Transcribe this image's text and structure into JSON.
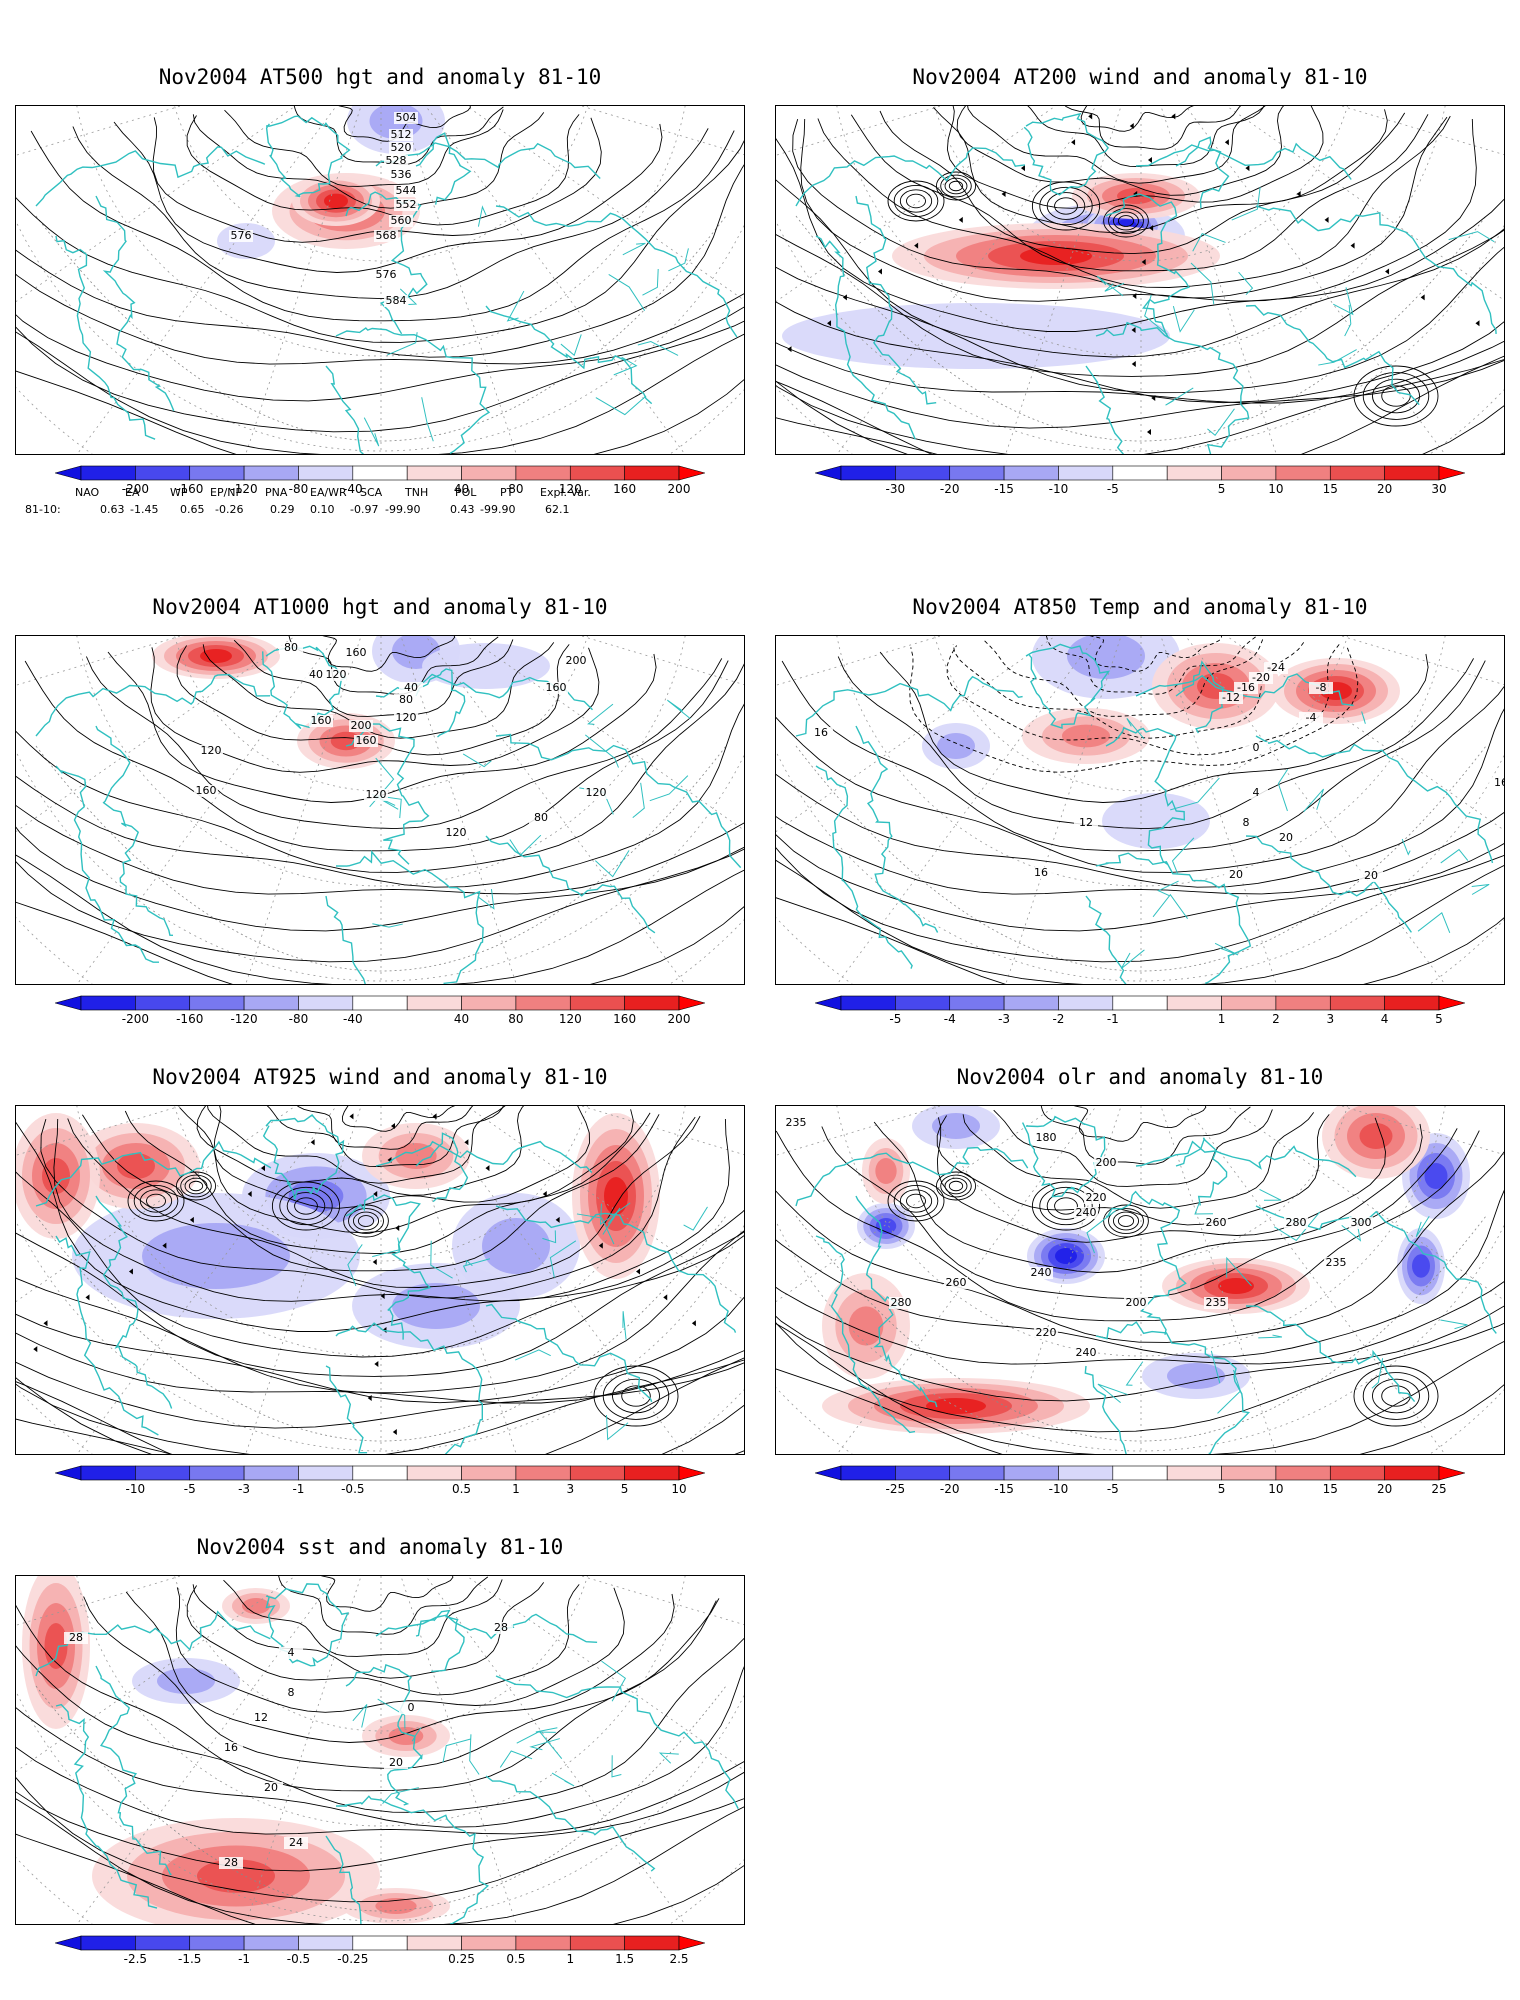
{
  "panels": [
    {
      "title": "Nov2004 AT500 hgt and anomaly 81-10",
      "kind": "contour",
      "contour_labels": [
        "504",
        "512",
        "520",
        "528",
        "536",
        "544",
        "552",
        "560",
        "568",
        "576",
        "576",
        "584"
      ],
      "colorbar": [
        "-200",
        "-160",
        "-120",
        "-80",
        "-40",
        "40",
        "80",
        "120",
        "160",
        "200"
      ]
    },
    {
      "title": "Nov2004 AT200 wind and anomaly 81-10",
      "kind": "stream",
      "contour_labels": [],
      "colorbar": [
        "-30",
        "-20",
        "-15",
        "-10",
        "-5",
        "5",
        "10",
        "15",
        "20",
        "30"
      ]
    },
    {
      "title": "Nov2004 AT1000 hgt and anomaly 81-10",
      "kind": "contour",
      "contour_labels": [
        "80",
        "160",
        "40",
        "120",
        "40",
        "80",
        "120",
        "200",
        "160",
        "160",
        "120",
        "160",
        "120",
        "80",
        "120",
        "120",
        "200",
        "160"
      ],
      "colorbar": [
        "-200",
        "-160",
        "-120",
        "-80",
        "-40",
        "40",
        "80",
        "120",
        "160",
        "200"
      ]
    },
    {
      "title": "Nov2004 AT850 Temp and anomaly 81-10",
      "kind": "contour",
      "contour_labels": [
        "-24",
        "-20",
        "-16",
        "-12",
        "-8",
        "-4",
        "0",
        "4",
        "8",
        "12",
        "16",
        "16",
        "20",
        "20",
        "20",
        "16"
      ],
      "colorbar": [
        "-5",
        "-4",
        "-3",
        "-2",
        "-1",
        "1",
        "2",
        "3",
        "4",
        "5"
      ]
    },
    {
      "title": "Nov2004 AT925 wind and anomaly 81-10",
      "kind": "stream",
      "contour_labels": [],
      "colorbar": [
        "-10",
        "-5",
        "-3",
        "-1",
        "-0.5",
        "0.5",
        "1",
        "3",
        "5",
        "10"
      ]
    },
    {
      "title": "Nov2004 olr and anomaly 81-10",
      "kind": "contour",
      "contour_labels": [
        "235",
        "180",
        "200",
        "220",
        "240",
        "260",
        "280",
        "300",
        "235",
        "240",
        "260",
        "280",
        "220",
        "235",
        "200",
        "240"
      ],
      "colorbar": [
        "-25",
        "-20",
        "-15",
        "-10",
        "-5",
        "5",
        "10",
        "15",
        "20",
        "25"
      ]
    },
    {
      "title": "Nov2004 sst and anomaly 81-10",
      "kind": "contour",
      "contour_labels": [
        "28",
        "4",
        "8",
        "12",
        "16",
        "20",
        "24",
        "28",
        "28",
        "20",
        "0"
      ],
      "colorbar": [
        "-2.5",
        "-1.5",
        "-1",
        "-0.5",
        "-0.25",
        "0.25",
        "0.5",
        "1",
        "1.5",
        "2.5"
      ]
    }
  ],
  "indices": {
    "headers": [
      "NAO",
      "EA",
      "WP",
      "EP/NP",
      "PNA",
      "EA/WR",
      "SCA",
      "TNH",
      "POL",
      "PT",
      "Expl. Var."
    ],
    "row_label": "81-10:",
    "values": [
      "0.63",
      "-1.45",
      "0.65",
      "-0.26",
      "0.29",
      "0.10",
      "-0.97",
      "-99.90",
      "0.43",
      "-99.90",
      "62.1"
    ]
  },
  "colors": {
    "coast": "#30c0c0",
    "neg": [
      "#2020e8",
      "#4848ee",
      "#7878f0",
      "#a8a8f4",
      "#d8d8fa"
    ],
    "pos": [
      "#fadada",
      "#f5b0b0",
      "#f08080",
      "#ea5050",
      "#e82020"
    ],
    "neg_arrow": "#1010e0",
    "pos_arrow": "#ff0000"
  }
}
